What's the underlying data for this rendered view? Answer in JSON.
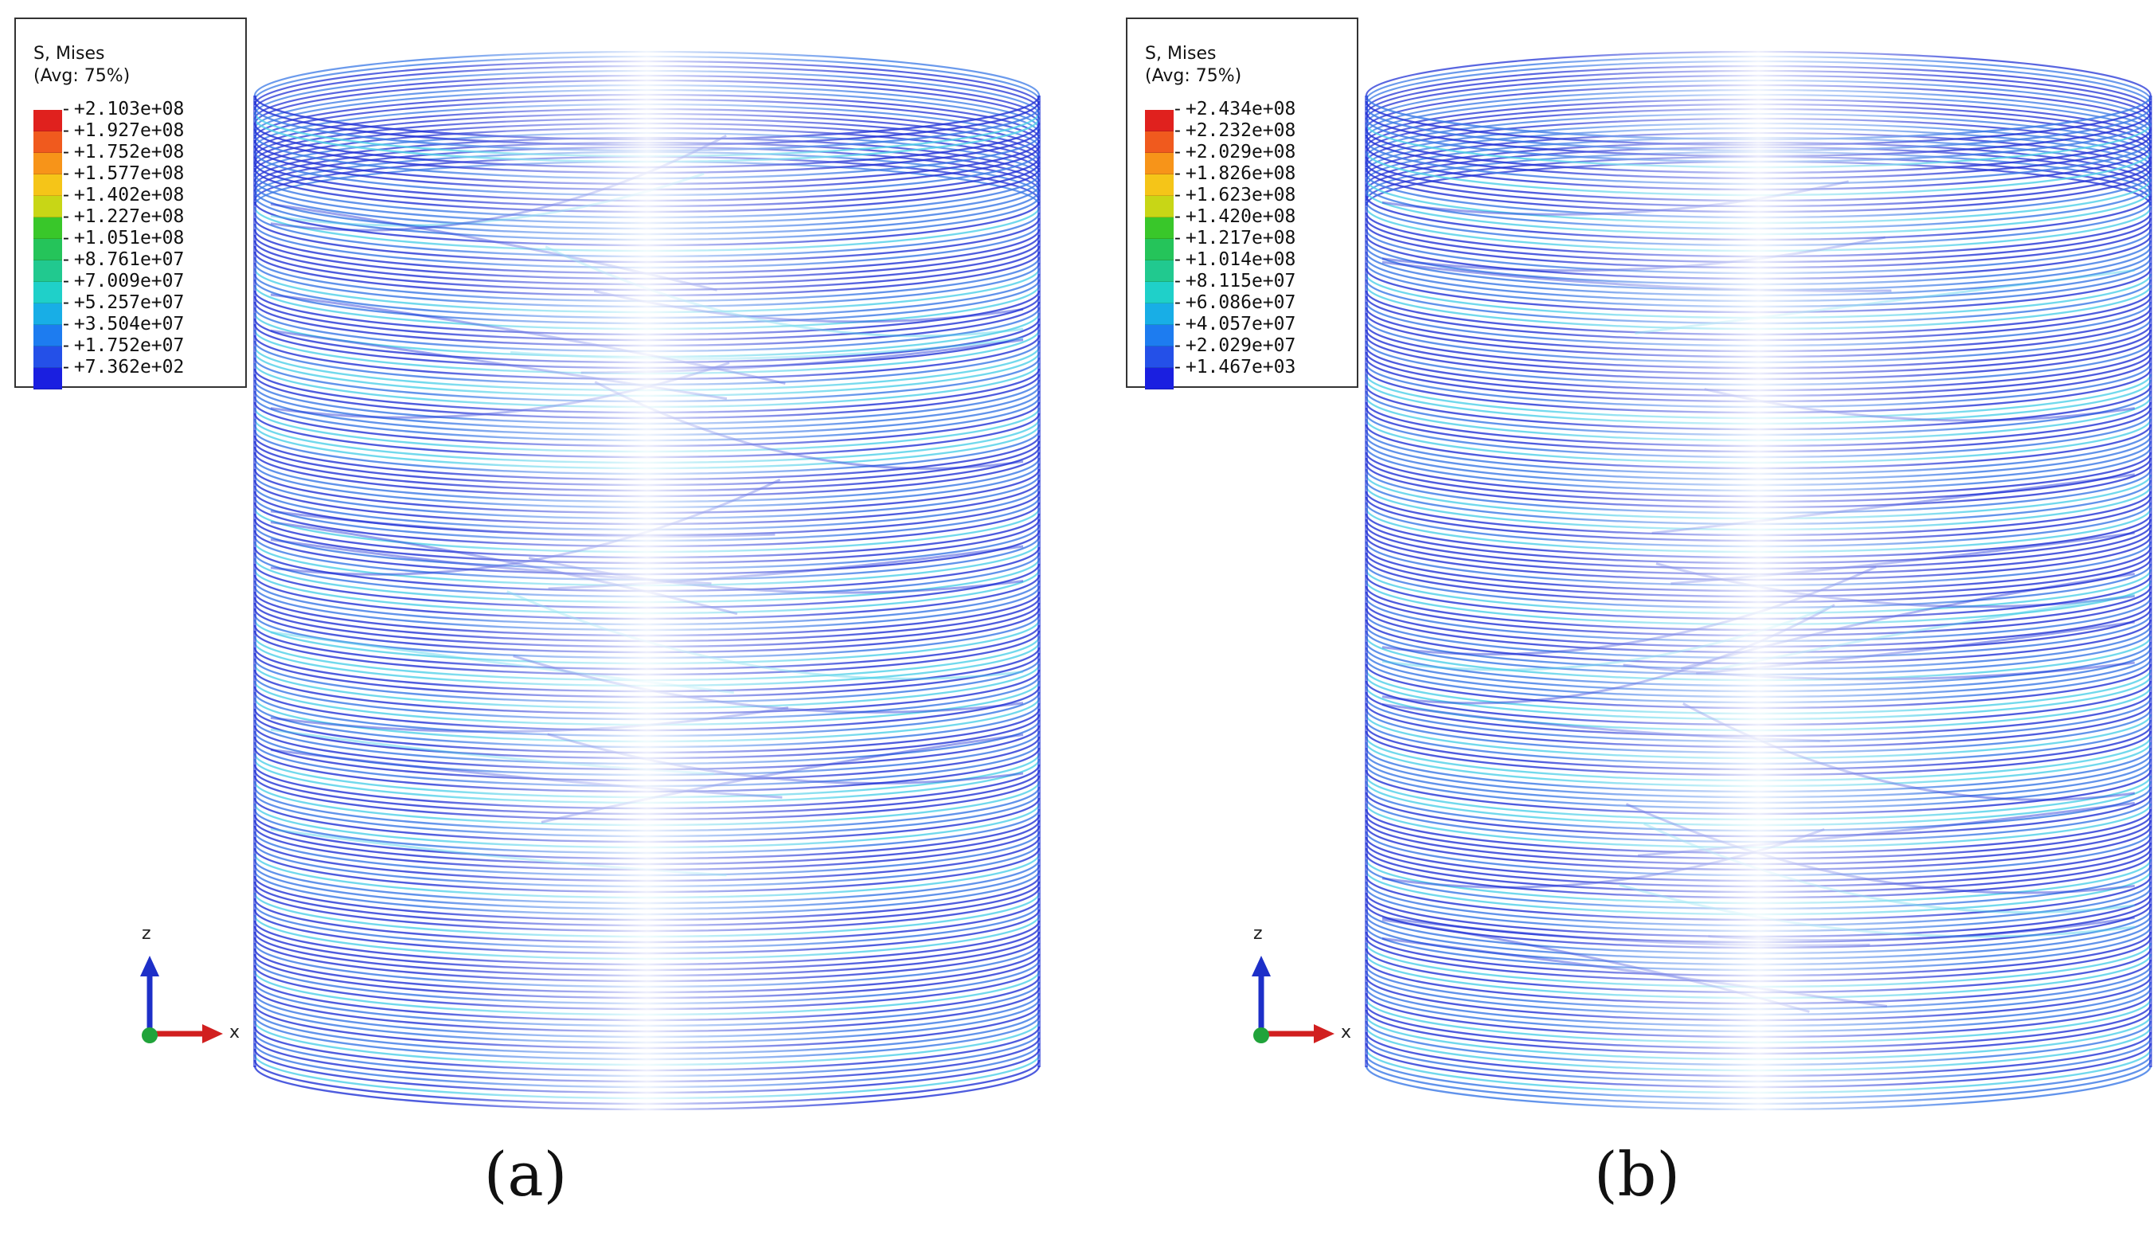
{
  "panels": [
    {
      "caption": "(a)",
      "legend": {
        "title_line1": "S, Mises",
        "title_line2": "(Avg: 75%)",
        "values": [
          "+2.103e+08",
          "+1.927e+08",
          "+1.752e+08",
          "+1.577e+08",
          "+1.402e+08",
          "+1.227e+08",
          "+1.051e+08",
          "+8.761e+07",
          "+7.009e+07",
          "+5.257e+07",
          "+3.504e+07",
          "+1.752e+07",
          "+7.362e+02"
        ]
      },
      "axes": {
        "z_label": "z",
        "x_label": "x"
      }
    },
    {
      "caption": "(b)",
      "legend": {
        "title_line1": "S, Mises",
        "title_line2": "(Avg: 75%)",
        "values": [
          "+2.434e+08",
          "+2.232e+08",
          "+2.029e+08",
          "+1.826e+08",
          "+1.623e+08",
          "+1.420e+08",
          "+1.217e+08",
          "+1.014e+08",
          "+8.115e+07",
          "+6.086e+07",
          "+4.057e+07",
          "+2.029e+07",
          "+1.467e+03"
        ]
      },
      "axes": {
        "z_label": "z",
        "x_label": "x"
      }
    }
  ],
  "colors": {
    "legend_scale": [
      "#e0211e",
      "#f05a1e",
      "#f79419",
      "#f5c518",
      "#c8d616",
      "#39c72a",
      "#25c45a",
      "#21c98f",
      "#1fd0c9",
      "#18aee6",
      "#1d7cf0",
      "#2450e8",
      "#1a1fe0"
    ],
    "axis_z": "#1d2fc8",
    "axis_x": "#d11f1f",
    "axis_origin": "#20a33a",
    "wire_dark": "#2233d6",
    "wire_mid": "#3a78e6",
    "wire_light": "#4fd0e8"
  }
}
